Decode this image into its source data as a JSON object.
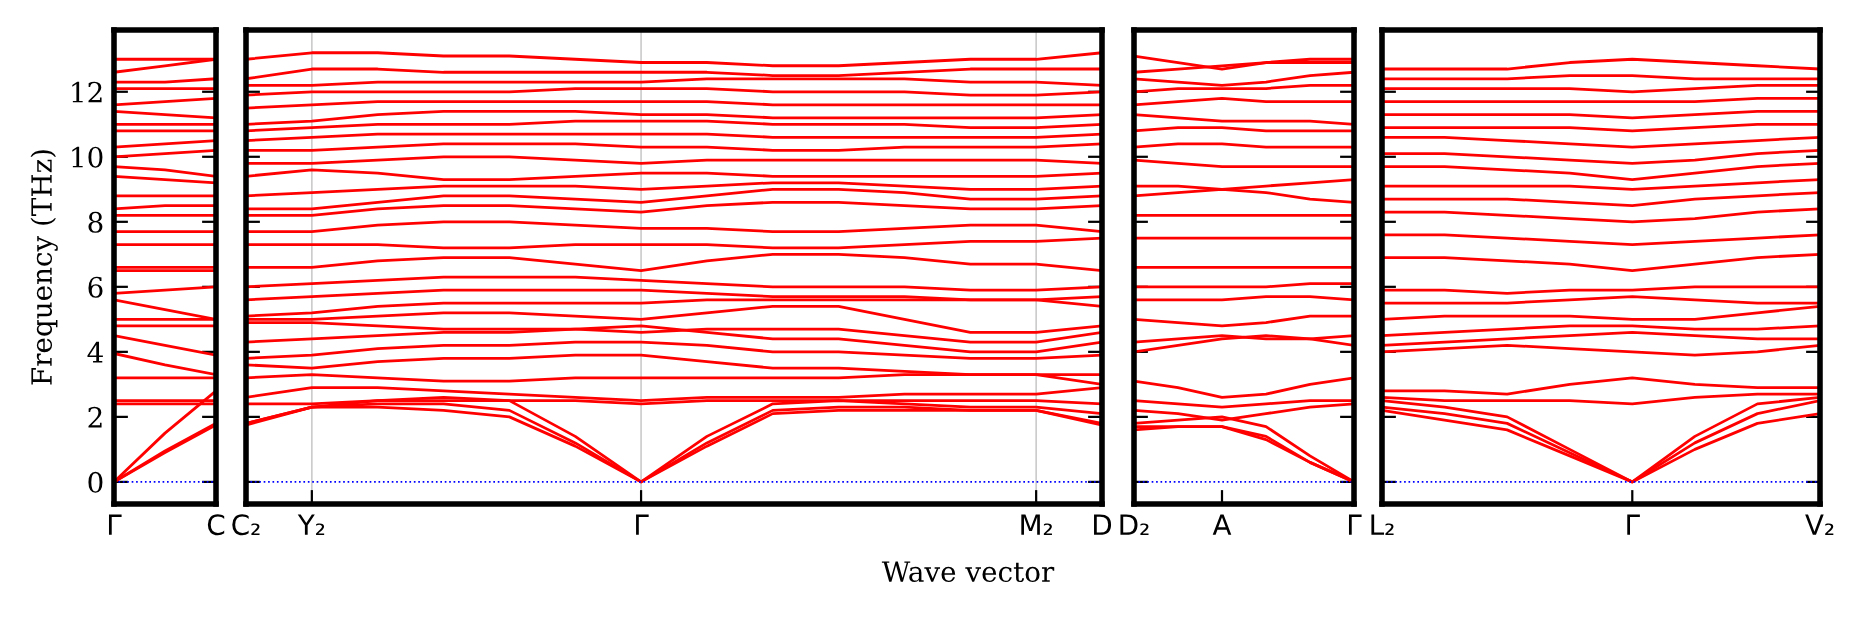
{
  "chart_data": [
    {
      "type": "line",
      "ylabel": "Frequency (THz)",
      "categories": [
        "Γ",
        null,
        "C"
      ],
      "ylim": [
        -0.68,
        13.9
      ],
      "yticks": [
        0,
        2,
        4,
        6,
        8,
        10,
        12
      ],
      "ref_lines": [
        {
          "axis": "y",
          "value": 0,
          "color": "#0000ff",
          "line_style": "dotted"
        }
      ],
      "line_style": "solid",
      "series": [
        {
          "color": "#ff0000",
          "values": [
            0,
            0.9,
            1.75
          ]
        },
        {
          "color": "#ff0000",
          "values": [
            0,
            0.95,
            1.8
          ]
        },
        {
          "color": "#ff0000",
          "values": [
            0,
            1.5,
            2.8
          ]
        },
        {
          "color": "#ff0000",
          "values": [
            2.4,
            2.4,
            2.4
          ]
        },
        {
          "color": "#ff0000",
          "values": [
            2.5,
            2.5,
            2.5
          ]
        },
        {
          "color": "#ff0000",
          "values": [
            3.2,
            3.2,
            3.2
          ]
        },
        {
          "color": "#ff0000",
          "values": [
            3.95,
            3.6,
            3.3
          ]
        },
        {
          "color": "#ff0000",
          "values": [
            4.5,
            4.2,
            3.9
          ]
        },
        {
          "color": "#ff0000",
          "values": [
            4.8,
            4.8,
            4.8
          ]
        },
        {
          "color": "#ff0000",
          "values": [
            5.0,
            5.0,
            5.0
          ]
        },
        {
          "color": "#ff0000",
          "values": [
            5.6,
            5.3,
            5.0
          ]
        },
        {
          "color": "#ff0000",
          "values": [
            5.8,
            5.9,
            6.0
          ]
        },
        {
          "color": "#ff0000",
          "values": [
            6.5,
            6.5,
            6.5
          ]
        },
        {
          "color": "#ff0000",
          "values": [
            6.6,
            6.6,
            6.6
          ]
        },
        {
          "color": "#ff0000",
          "values": [
            7.3,
            7.3,
            7.3
          ]
        },
        {
          "color": "#ff0000",
          "values": [
            7.7,
            7.7,
            7.7
          ]
        },
        {
          "color": "#ff0000",
          "values": [
            8.2,
            8.2,
            8.2
          ]
        },
        {
          "color": "#ff0000",
          "values": [
            8.4,
            8.5,
            8.5
          ]
        },
        {
          "color": "#ff0000",
          "values": [
            8.8,
            8.8,
            8.8
          ]
        },
        {
          "color": "#ff0000",
          "values": [
            9.4,
            9.3,
            9.2
          ]
        },
        {
          "color": "#ff0000",
          "values": [
            9.7,
            9.6,
            9.4
          ]
        },
        {
          "color": "#ff0000",
          "values": [
            10.0,
            10.1,
            10.2
          ]
        },
        {
          "color": "#ff0000",
          "values": [
            10.3,
            10.4,
            10.5
          ]
        },
        {
          "color": "#ff0000",
          "values": [
            10.8,
            10.8,
            10.8
          ]
        },
        {
          "color": "#ff0000",
          "values": [
            11.0,
            11.0,
            11.0
          ]
        },
        {
          "color": "#ff0000",
          "values": [
            11.4,
            11.3,
            11.2
          ]
        },
        {
          "color": "#ff0000",
          "values": [
            11.6,
            11.7,
            11.8
          ]
        },
        {
          "color": "#ff0000",
          "values": [
            12.1,
            12.1,
            12.1
          ]
        },
        {
          "color": "#ff0000",
          "values": [
            12.3,
            12.3,
            12.4
          ]
        },
        {
          "color": "#ff0000",
          "values": [
            12.6,
            12.8,
            13.0
          ]
        },
        {
          "color": "#ff0000",
          "values": [
            13.0,
            13.0,
            13.0
          ]
        }
      ]
    },
    {
      "type": "line",
      "xlabel": "Wave vector",
      "categories": [
        "C₂",
        "Y₂",
        null,
        null,
        null,
        null,
        "Γ",
        null,
        null,
        null,
        null,
        null,
        "M₂",
        "D"
      ],
      "ylim": [
        -0.68,
        13.9
      ],
      "yticks": [
        {
          "value": 0,
          "label": null
        },
        {
          "value": 2,
          "label": null
        },
        {
          "value": 4,
          "label": null
        },
        {
          "value": 6,
          "label": null
        },
        {
          "value": 8,
          "label": null
        },
        {
          "value": 10,
          "label": null
        },
        {
          "value": 12,
          "label": null
        }
      ],
      "tick_labels": "x",
      "grid": "x",
      "ref_lines": [
        {
          "axis": "y",
          "value": 0,
          "color": "#0000ff",
          "line_style": "dotted"
        }
      ],
      "line_style": "solid",
      "series": [
        {
          "color": "#ff0000",
          "values": [
            1.75,
            2.3,
            2.3,
            2.2,
            2.0,
            1.1,
            0,
            1.1,
            2.1,
            2.2,
            2.2,
            2.2,
            2.2,
            1.75
          ]
        },
        {
          "color": "#ff0000",
          "values": [
            1.8,
            2.3,
            2.4,
            2.4,
            2.2,
            1.2,
            0,
            1.2,
            2.2,
            2.3,
            2.3,
            2.2,
            2.2,
            1.8
          ]
        },
        {
          "color": "#ff0000",
          "values": [
            1.8,
            2.3,
            2.5,
            2.6,
            2.5,
            1.4,
            0,
            1.4,
            2.4,
            2.5,
            2.4,
            2.3,
            2.3,
            2.1
          ]
        },
        {
          "color": "#ff0000",
          "values": [
            2.4,
            2.4,
            2.5,
            2.5,
            2.5,
            2.5,
            2.4,
            2.5,
            2.5,
            2.5,
            2.5,
            2.5,
            2.5,
            2.4
          ]
        },
        {
          "color": "#ff0000",
          "values": [
            2.6,
            2.9,
            2.9,
            2.8,
            2.7,
            2.6,
            2.5,
            2.6,
            2.6,
            2.6,
            2.7,
            2.7,
            2.7,
            2.9
          ]
        },
        {
          "color": "#ff0000",
          "values": [
            3.2,
            3.3,
            3.2,
            3.1,
            3.1,
            3.2,
            3.2,
            3.2,
            3.2,
            3.2,
            3.3,
            3.3,
            3.3,
            3.0
          ]
        },
        {
          "color": "#ff0000",
          "values": [
            3.6,
            3.5,
            3.7,
            3.8,
            3.8,
            3.9,
            3.9,
            3.7,
            3.5,
            3.5,
            3.4,
            3.3,
            3.3,
            3.3
          ]
        },
        {
          "color": "#ff0000",
          "values": [
            3.8,
            3.9,
            4.1,
            4.2,
            4.2,
            4.3,
            4.3,
            4.2,
            4.0,
            4.0,
            3.9,
            3.8,
            3.8,
            3.9
          ]
        },
        {
          "color": "#ff0000",
          "values": [
            4.3,
            4.4,
            4.5,
            4.6,
            4.6,
            4.7,
            4.8,
            4.6,
            4.4,
            4.4,
            4.2,
            4.0,
            4.0,
            4.3
          ]
        },
        {
          "color": "#ff0000",
          "values": [
            4.9,
            4.9,
            4.8,
            4.7,
            4.7,
            4.7,
            4.6,
            4.7,
            4.7,
            4.7,
            4.5,
            4.3,
            4.3,
            4.6
          ]
        },
        {
          "color": "#ff0000",
          "values": [
            5.0,
            5.0,
            5.1,
            5.2,
            5.2,
            5.1,
            5.0,
            5.2,
            5.4,
            5.4,
            5.0,
            4.6,
            4.6,
            4.8
          ]
        },
        {
          "color": "#ff0000",
          "values": [
            5.1,
            5.2,
            5.4,
            5.5,
            5.5,
            5.5,
            5.5,
            5.6,
            5.6,
            5.6,
            5.6,
            5.6,
            5.6,
            5.4
          ]
        },
        {
          "color": "#ff0000",
          "values": [
            5.6,
            5.7,
            5.8,
            5.9,
            5.9,
            5.9,
            5.9,
            5.8,
            5.7,
            5.7,
            5.7,
            5.6,
            5.6,
            5.7
          ]
        },
        {
          "color": "#ff0000",
          "values": [
            6.0,
            6.1,
            6.2,
            6.3,
            6.3,
            6.3,
            6.2,
            6.1,
            6.0,
            6.0,
            6.0,
            5.9,
            5.9,
            6.0
          ]
        },
        {
          "color": "#ff0000",
          "values": [
            6.6,
            6.6,
            6.8,
            6.9,
            6.9,
            6.7,
            6.5,
            6.8,
            7.0,
            7.0,
            6.9,
            6.7,
            6.7,
            6.5
          ]
        },
        {
          "color": "#ff0000",
          "values": [
            7.3,
            7.3,
            7.3,
            7.2,
            7.2,
            7.3,
            7.3,
            7.3,
            7.2,
            7.2,
            7.3,
            7.4,
            7.4,
            7.5
          ]
        },
        {
          "color": "#ff0000",
          "values": [
            7.7,
            7.7,
            7.9,
            8.0,
            8.0,
            7.9,
            7.8,
            7.8,
            7.7,
            7.7,
            7.8,
            7.9,
            7.9,
            7.7
          ]
        },
        {
          "color": "#ff0000",
          "values": [
            8.2,
            8.2,
            8.4,
            8.5,
            8.5,
            8.4,
            8.3,
            8.5,
            8.6,
            8.6,
            8.5,
            8.4,
            8.4,
            8.5
          ]
        },
        {
          "color": "#ff0000",
          "values": [
            8.4,
            8.4,
            8.6,
            8.8,
            8.8,
            8.7,
            8.6,
            8.8,
            9.0,
            9.0,
            8.9,
            8.7,
            8.7,
            8.8
          ]
        },
        {
          "color": "#ff0000",
          "values": [
            8.8,
            8.9,
            9.0,
            9.1,
            9.1,
            9.1,
            9.0,
            9.1,
            9.2,
            9.2,
            9.1,
            9.0,
            9.0,
            9.1
          ]
        },
        {
          "color": "#ff0000",
          "values": [
            9.4,
            9.6,
            9.5,
            9.3,
            9.3,
            9.4,
            9.5,
            9.5,
            9.4,
            9.4,
            9.4,
            9.4,
            9.4,
            9.5
          ]
        },
        {
          "color": "#ff0000",
          "values": [
            9.8,
            9.8,
            9.9,
            10.0,
            10.0,
            9.9,
            9.8,
            9.9,
            9.9,
            9.9,
            9.9,
            9.9,
            9.9,
            9.8
          ]
        },
        {
          "color": "#ff0000",
          "values": [
            10.2,
            10.2,
            10.3,
            10.4,
            10.4,
            10.4,
            10.3,
            10.3,
            10.2,
            10.2,
            10.3,
            10.3,
            10.3,
            10.4
          ]
        },
        {
          "color": "#ff0000",
          "values": [
            10.5,
            10.6,
            10.7,
            10.7,
            10.7,
            10.7,
            10.7,
            10.7,
            10.6,
            10.6,
            10.6,
            10.6,
            10.6,
            10.7
          ]
        },
        {
          "color": "#ff0000",
          "values": [
            10.8,
            10.9,
            11.0,
            11.0,
            11.0,
            11.1,
            11.1,
            11.1,
            11.0,
            11.0,
            11.0,
            10.9,
            10.9,
            11.0
          ]
        },
        {
          "color": "#ff0000",
          "values": [
            11.0,
            11.1,
            11.3,
            11.4,
            11.4,
            11.4,
            11.3,
            11.3,
            11.2,
            11.2,
            11.2,
            11.2,
            11.2,
            11.3
          ]
        },
        {
          "color": "#ff0000",
          "values": [
            11.5,
            11.6,
            11.7,
            11.7,
            11.7,
            11.7,
            11.7,
            11.7,
            11.6,
            11.6,
            11.6,
            11.6,
            11.6,
            11.6
          ]
        },
        {
          "color": "#ff0000",
          "values": [
            11.9,
            12.0,
            12.0,
            12.0,
            12.0,
            12.1,
            12.1,
            12.1,
            12.0,
            12.0,
            12.0,
            11.9,
            11.9,
            12.0
          ]
        },
        {
          "color": "#ff0000",
          "values": [
            12.2,
            12.2,
            12.3,
            12.3,
            12.3,
            12.3,
            12.3,
            12.4,
            12.4,
            12.4,
            12.4,
            12.3,
            12.3,
            12.2
          ]
        },
        {
          "color": "#ff0000",
          "values": [
            12.4,
            12.7,
            12.7,
            12.6,
            12.6,
            12.6,
            12.6,
            12.6,
            12.5,
            12.5,
            12.6,
            12.7,
            12.7,
            12.7
          ]
        },
        {
          "color": "#ff0000",
          "values": [
            13.0,
            13.2,
            13.2,
            13.1,
            13.1,
            13.0,
            12.9,
            12.9,
            12.8,
            12.8,
            12.9,
            13.0,
            13.0,
            13.2
          ]
        }
      ]
    },
    {
      "type": "line",
      "categories": [
        "D₂",
        null,
        "A",
        null,
        null,
        "Γ"
      ],
      "ylim": [
        -0.68,
        13.9
      ],
      "yticks": [
        {
          "value": 0,
          "label": null
        },
        {
          "value": 2,
          "label": null
        },
        {
          "value": 4,
          "label": null
        },
        {
          "value": 6,
          "label": null
        },
        {
          "value": 8,
          "label": null
        },
        {
          "value": 10,
          "label": null
        },
        {
          "value": 12,
          "label": null
        }
      ],
      "tick_labels": "x",
      "ref_lines": [
        {
          "axis": "y",
          "value": 0,
          "color": "#0000ff",
          "line_style": "dotted"
        }
      ],
      "line_style": "solid",
      "series": [
        {
          "color": "#ff0000",
          "values": [
            1.6,
            1.7,
            1.7,
            1.3,
            0.6,
            0
          ]
        },
        {
          "color": "#ff0000",
          "values": [
            1.7,
            1.7,
            1.7,
            1.4,
            0.6,
            0
          ]
        },
        {
          "color": "#ff0000",
          "values": [
            1.8,
            1.9,
            2.0,
            1.7,
            0.8,
            0
          ]
        },
        {
          "color": "#ff0000",
          "values": [
            2.2,
            2.1,
            1.9,
            2.1,
            2.3,
            2.4
          ]
        },
        {
          "color": "#ff0000",
          "values": [
            2.5,
            2.4,
            2.3,
            2.4,
            2.5,
            2.5
          ]
        },
        {
          "color": "#ff0000",
          "values": [
            3.1,
            2.9,
            2.6,
            2.7,
            3.0,
            3.2
          ]
        },
        {
          "color": "#ff0000",
          "values": [
            4.0,
            4.2,
            4.4,
            4.5,
            4.4,
            4.2
          ]
        },
        {
          "color": "#ff0000",
          "values": [
            4.3,
            4.4,
            4.5,
            4.4,
            4.4,
            4.5
          ]
        },
        {
          "color": "#ff0000",
          "values": [
            5.0,
            4.9,
            4.8,
            4.9,
            5.1,
            5.1
          ]
        },
        {
          "color": "#ff0000",
          "values": [
            5.6,
            5.6,
            5.6,
            5.7,
            5.7,
            5.6
          ]
        },
        {
          "color": "#ff0000",
          "values": [
            6.0,
            6.0,
            6.0,
            6.0,
            6.1,
            6.1
          ]
        },
        {
          "color": "#ff0000",
          "values": [
            6.6,
            6.6,
            6.6,
            6.6,
            6.6,
            6.6
          ]
        },
        {
          "color": "#ff0000",
          "values": [
            7.5,
            7.5,
            7.5,
            7.5,
            7.5,
            7.5
          ]
        },
        {
          "color": "#ff0000",
          "values": [
            8.2,
            8.2,
            8.2,
            8.2,
            8.2,
            8.2
          ]
        },
        {
          "color": "#ff0000",
          "values": [
            8.8,
            8.9,
            9.0,
            8.9,
            8.7,
            8.6
          ]
        },
        {
          "color": "#ff0000",
          "values": [
            9.1,
            9.1,
            9.0,
            9.1,
            9.2,
            9.3
          ]
        },
        {
          "color": "#ff0000",
          "values": [
            9.9,
            9.8,
            9.7,
            9.7,
            9.7,
            9.7
          ]
        },
        {
          "color": "#ff0000",
          "values": [
            10.3,
            10.4,
            10.4,
            10.3,
            10.3,
            10.3
          ]
        },
        {
          "color": "#ff0000",
          "values": [
            10.8,
            10.9,
            10.9,
            10.8,
            10.8,
            10.8
          ]
        },
        {
          "color": "#ff0000",
          "values": [
            11.3,
            11.2,
            11.1,
            11.1,
            11.1,
            11.0
          ]
        },
        {
          "color": "#ff0000",
          "values": [
            11.6,
            11.7,
            11.8,
            11.7,
            11.7,
            11.7
          ]
        },
        {
          "color": "#ff0000",
          "values": [
            12.0,
            12.1,
            12.1,
            12.1,
            12.2,
            12.2
          ]
        },
        {
          "color": "#ff0000",
          "values": [
            12.4,
            12.3,
            12.2,
            12.3,
            12.5,
            12.6
          ]
        },
        {
          "color": "#ff0000",
          "values": [
            12.6,
            12.7,
            12.8,
            12.9,
            12.9,
            12.9
          ]
        },
        {
          "color": "#ff0000",
          "values": [
            13.1,
            12.9,
            12.7,
            12.9,
            13.0,
            13.0
          ]
        }
      ]
    },
    {
      "type": "line",
      "categories": [
        "L₂",
        null,
        null,
        null,
        "Γ",
        null,
        null,
        "V₂"
      ],
      "ylim": [
        -0.68,
        13.9
      ],
      "yticks": [
        {
          "value": 0,
          "label": null
        },
        {
          "value": 2,
          "label": null
        },
        {
          "value": 4,
          "label": null
        },
        {
          "value": 6,
          "label": null
        },
        {
          "value": 8,
          "label": null
        },
        {
          "value": 10,
          "label": null
        },
        {
          "value": 12,
          "label": null
        }
      ],
      "tick_labels": "x",
      "ref_lines": [
        {
          "axis": "y",
          "value": 0,
          "color": "#0000ff",
          "line_style": "dotted"
        }
      ],
      "line_style": "solid",
      "series": [
        {
          "color": "#ff0000",
          "values": [
            2.2,
            1.9,
            1.6,
            0.8,
            0,
            1.0,
            1.8,
            2.1
          ]
        },
        {
          "color": "#ff0000",
          "values": [
            2.3,
            2.1,
            1.8,
            0.9,
            0,
            1.2,
            2.1,
            2.5
          ]
        },
        {
          "color": "#ff0000",
          "values": [
            2.5,
            2.3,
            2.0,
            1.0,
            0,
            1.4,
            2.4,
            2.6
          ]
        },
        {
          "color": "#ff0000",
          "values": [
            2.6,
            2.5,
            2.5,
            2.5,
            2.4,
            2.6,
            2.7,
            2.7
          ]
        },
        {
          "color": "#ff0000",
          "values": [
            2.8,
            2.8,
            2.7,
            3.0,
            3.2,
            3.0,
            2.9,
            2.9
          ]
        },
        {
          "color": "#ff0000",
          "values": [
            4.0,
            4.1,
            4.2,
            4.1,
            4.0,
            3.9,
            4.0,
            4.2
          ]
        },
        {
          "color": "#ff0000",
          "values": [
            4.2,
            4.3,
            4.4,
            4.5,
            4.6,
            4.5,
            4.4,
            4.4
          ]
        },
        {
          "color": "#ff0000",
          "values": [
            4.5,
            4.6,
            4.7,
            4.8,
            4.8,
            4.7,
            4.7,
            4.8
          ]
        },
        {
          "color": "#ff0000",
          "values": [
            5.0,
            5.1,
            5.1,
            5.1,
            5.0,
            5.0,
            5.2,
            5.4
          ]
        },
        {
          "color": "#ff0000",
          "values": [
            5.5,
            5.5,
            5.5,
            5.6,
            5.7,
            5.6,
            5.5,
            5.5
          ]
        },
        {
          "color": "#ff0000",
          "values": [
            5.9,
            5.9,
            5.8,
            5.9,
            5.9,
            6.0,
            6.0,
            6.0
          ]
        },
        {
          "color": "#ff0000",
          "values": [
            6.9,
            6.9,
            6.8,
            6.7,
            6.5,
            6.7,
            6.9,
            7.0
          ]
        },
        {
          "color": "#ff0000",
          "values": [
            7.6,
            7.6,
            7.5,
            7.4,
            7.3,
            7.4,
            7.5,
            7.6
          ]
        },
        {
          "color": "#ff0000",
          "values": [
            8.3,
            8.3,
            8.2,
            8.1,
            8.0,
            8.1,
            8.3,
            8.4
          ]
        },
        {
          "color": "#ff0000",
          "values": [
            8.7,
            8.7,
            8.7,
            8.6,
            8.5,
            8.7,
            8.8,
            8.9
          ]
        },
        {
          "color": "#ff0000",
          "values": [
            9.1,
            9.1,
            9.1,
            9.1,
            9.0,
            9.1,
            9.2,
            9.3
          ]
        },
        {
          "color": "#ff0000",
          "values": [
            9.7,
            9.7,
            9.6,
            9.5,
            9.3,
            9.5,
            9.7,
            9.8
          ]
        },
        {
          "color": "#ff0000",
          "values": [
            10.1,
            10.1,
            10.0,
            9.9,
            9.8,
            9.9,
            10.1,
            10.2
          ]
        },
        {
          "color": "#ff0000",
          "values": [
            10.6,
            10.6,
            10.5,
            10.4,
            10.3,
            10.4,
            10.5,
            10.6
          ]
        },
        {
          "color": "#ff0000",
          "values": [
            10.9,
            10.9,
            10.9,
            10.9,
            10.8,
            10.9,
            11.0,
            11.0
          ]
        },
        {
          "color": "#ff0000",
          "values": [
            11.3,
            11.3,
            11.3,
            11.3,
            11.2,
            11.3,
            11.4,
            11.4
          ]
        },
        {
          "color": "#ff0000",
          "values": [
            11.7,
            11.7,
            11.7,
            11.7,
            11.7,
            11.7,
            11.8,
            11.8
          ]
        },
        {
          "color": "#ff0000",
          "values": [
            12.1,
            12.1,
            12.1,
            12.1,
            12.0,
            12.1,
            12.2,
            12.2
          ]
        },
        {
          "color": "#ff0000",
          "values": [
            12.4,
            12.4,
            12.4,
            12.5,
            12.5,
            12.4,
            12.4,
            12.4
          ]
        },
        {
          "color": "#ff0000",
          "values": [
            12.7,
            12.7,
            12.7,
            12.9,
            13.0,
            12.9,
            12.8,
            12.7
          ]
        }
      ]
    }
  ]
}
